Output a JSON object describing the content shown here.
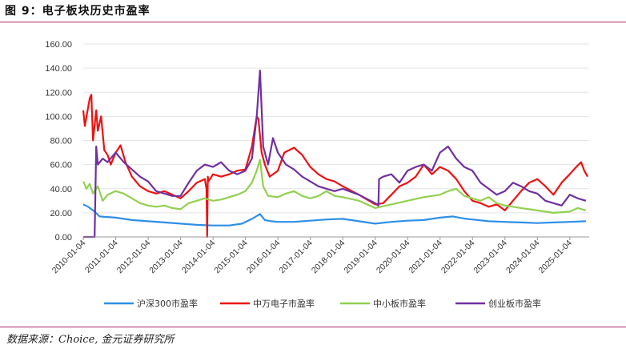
{
  "header": {
    "title": "图 9：电子板块历史市盈率",
    "source": "数据来源：Choice, 金元证券研究所"
  },
  "chart_data": {
    "type": "line",
    "title": "电子板块历史市盈率",
    "xlabel": "",
    "ylabel": "",
    "ylim": [
      0,
      160
    ],
    "yticks": [
      0,
      20,
      40,
      60,
      80,
      100,
      120,
      140,
      160
    ],
    "ytick_labels": [
      "0.00",
      "20.00",
      "40.00",
      "60.00",
      "80.00",
      "100.00",
      "120.00",
      "140.00",
      "160.00"
    ],
    "xlim": [
      2010.0,
      2025.6
    ],
    "xticks": [
      "2010-01-04",
      "2011-01-04",
      "2012-01-04",
      "2013-01-04",
      "2014-01-04",
      "2015-01-04",
      "2016-01-04",
      "2017-01-04",
      "2018-01-04",
      "2019-01-04",
      "2020-01-04",
      "2021-01-04",
      "2022-01-04",
      "2023-01-04",
      "2024-01-04",
      "2025-01-04"
    ],
    "legend_position": "bottom",
    "series": [
      {
        "name": "沪深300市盈率",
        "color": "#2e8fe6",
        "x": [
          2010.0,
          2010.15,
          2010.35,
          2010.5,
          2011.0,
          2011.5,
          2012.0,
          2012.5,
          2013.0,
          2013.5,
          2014.0,
          2014.5,
          2014.9,
          2015.2,
          2015.45,
          2015.6,
          2015.8,
          2016.0,
          2016.5,
          2017.0,
          2017.5,
          2018.0,
          2018.5,
          2019.0,
          2019.5,
          2020.0,
          2020.5,
          2021.0,
          2021.4,
          2021.8,
          2022.0,
          2022.5,
          2023.0,
          2023.5,
          2024.0,
          2024.5,
          2025.0,
          2025.5
        ],
        "values": [
          27,
          25,
          21,
          17,
          16,
          14,
          13,
          12,
          11,
          10,
          9.5,
          9.5,
          11,
          15,
          19,
          14,
          13,
          12.5,
          12.5,
          13.5,
          14.5,
          15,
          13,
          11,
          12.5,
          13.5,
          14,
          16,
          17,
          15,
          14.5,
          13,
          12.5,
          12,
          11.5,
          12,
          12.5,
          13
        ]
      },
      {
        "name": "中万电子市盈率",
        "color": "#ee1111",
        "x": [
          2010.0,
          2010.05,
          2010.1,
          2010.2,
          2010.25,
          2010.3,
          2010.4,
          2010.45,
          2010.55,
          2010.65,
          2010.75,
          2010.85,
          2011.0,
          2011.15,
          2011.3,
          2011.5,
          2011.75,
          2012.0,
          2012.25,
          2012.5,
          2012.75,
          2013.0,
          2013.25,
          2013.5,
          2013.75,
          2013.8,
          2013.82,
          2013.84,
          2013.86,
          2014.0,
          2014.25,
          2014.5,
          2014.75,
          2015.0,
          2015.2,
          2015.35,
          2015.4,
          2015.5,
          2015.6,
          2015.75,
          2016.0,
          2016.2,
          2016.5,
          2016.75,
          2017.0,
          2017.25,
          2017.5,
          2017.75,
          2018.0,
          2018.5,
          2019.0,
          2019.25,
          2019.5,
          2019.75,
          2020.0,
          2020.25,
          2020.5,
          2020.75,
          2021.0,
          2021.25,
          2021.5,
          2021.75,
          2022.0,
          2022.25,
          2022.5,
          2022.75,
          2023.0,
          2023.25,
          2023.5,
          2023.75,
          2024.0,
          2024.25,
          2024.5,
          2024.75,
          2025.0,
          2025.2,
          2025.35,
          2025.45,
          2025.55
        ],
        "values": [
          105,
          92,
          100,
          115,
          118,
          80,
          105,
          88,
          100,
          72,
          68,
          60,
          70,
          76,
          62,
          50,
          42,
          38,
          36,
          38,
          35,
          32,
          38,
          45,
          48,
          40,
          0,
          50,
          46,
          52,
          50,
          52,
          55,
          56,
          75,
          100,
          98,
          70,
          60,
          50,
          55,
          70,
          74,
          68,
          58,
          52,
          48,
          46,
          42,
          35,
          27,
          28,
          35,
          42,
          45,
          50,
          60,
          52,
          58,
          55,
          48,
          38,
          30,
          28,
          25,
          27,
          22,
          30,
          38,
          45,
          48,
          42,
          35,
          45,
          52,
          58,
          62,
          55,
          50
        ]
      },
      {
        "name": "中小板市盈率",
        "color": "#92d050",
        "x": [
          2010.0,
          2010.1,
          2010.2,
          2010.3,
          2010.45,
          2010.6,
          2010.75,
          2011.0,
          2011.25,
          2011.5,
          2011.75,
          2012.0,
          2012.25,
          2012.5,
          2012.75,
          2013.0,
          2013.25,
          2013.5,
          2013.75,
          2014.0,
          2014.25,
          2014.5,
          2014.75,
          2015.0,
          2015.2,
          2015.35,
          2015.45,
          2015.55,
          2015.7,
          2016.0,
          2016.25,
          2016.5,
          2016.75,
          2017.0,
          2017.25,
          2017.5,
          2017.75,
          2018.0,
          2018.5,
          2019.0,
          2019.5,
          2020.0,
          2020.5,
          2021.0,
          2021.25,
          2021.5,
          2021.75,
          2022.0,
          2022.25,
          2022.5,
          2022.75,
          2023.0,
          2023.25,
          2023.5,
          2023.75,
          2024.0,
          2024.5,
          2025.0,
          2025.25,
          2025.5
        ],
        "values": [
          46,
          40,
          44,
          36,
          42,
          30,
          35,
          38,
          36,
          32,
          28,
          26,
          25,
          26,
          24,
          23,
          28,
          30,
          32,
          30,
          31,
          33,
          35,
          38,
          45,
          55,
          64,
          42,
          34,
          33,
          36,
          38,
          34,
          32,
          34,
          38,
          34,
          33,
          30,
          24,
          27,
          30,
          33,
          35,
          38,
          40,
          34,
          32,
          30,
          33,
          28,
          26,
          25,
          24,
          23,
          22,
          20,
          21,
          24,
          22
        ]
      },
      {
        "name": "创业板市盈率",
        "color": "#7030a0",
        "x": [
          2010.0,
          2010.2,
          2010.35,
          2010.4,
          2010.45,
          2010.6,
          2010.75,
          2011.0,
          2011.25,
          2011.5,
          2011.75,
          2012.0,
          2012.25,
          2012.5,
          2012.75,
          2013.0,
          2013.25,
          2013.5,
          2013.75,
          2014.0,
          2014.25,
          2014.5,
          2014.75,
          2015.0,
          2015.2,
          2015.35,
          2015.45,
          2015.55,
          2015.7,
          2015.85,
          2016.0,
          2016.25,
          2016.5,
          2016.75,
          2017.0,
          2017.25,
          2017.5,
          2017.75,
          2018.0,
          2018.5,
          2019.0,
          2019.1,
          2019.12,
          2019.25,
          2019.5,
          2019.75,
          2020.0,
          2020.25,
          2020.5,
          2020.75,
          2021.0,
          2021.25,
          2021.5,
          2021.75,
          2022.0,
          2022.25,
          2022.5,
          2022.75,
          2023.0,
          2023.25,
          2023.5,
          2023.75,
          2024.0,
          2024.25,
          2024.5,
          2024.75,
          2025.0,
          2025.25,
          2025.5
        ],
        "values": [
          0,
          0,
          0,
          75,
          60,
          65,
          62,
          70,
          62,
          56,
          50,
          46,
          38,
          36,
          34,
          34,
          45,
          55,
          60,
          58,
          62,
          55,
          52,
          55,
          65,
          100,
          138,
          75,
          60,
          82,
          70,
          60,
          56,
          50,
          46,
          42,
          40,
          38,
          40,
          35,
          28,
          26,
          48,
          50,
          52,
          45,
          55,
          58,
          60,
          55,
          70,
          75,
          65,
          58,
          55,
          45,
          40,
          35,
          38,
          45,
          42,
          38,
          36,
          30,
          28,
          26,
          35,
          32,
          30
        ]
      }
    ]
  }
}
